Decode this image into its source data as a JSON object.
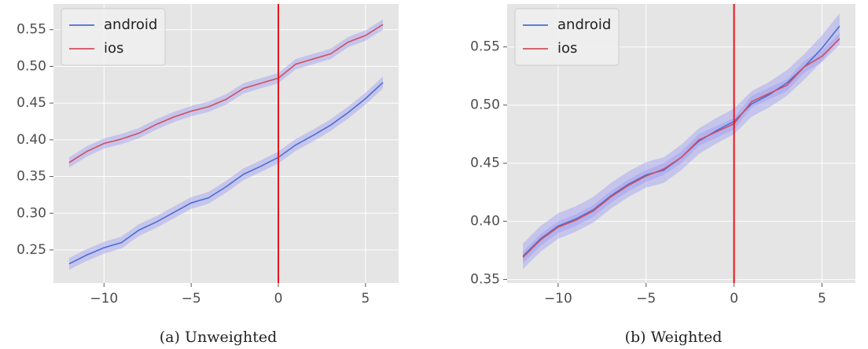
{
  "chart_data": [
    {
      "type": "line",
      "caption": "(a) Unweighted",
      "x": [
        -12,
        -11,
        -10,
        -9,
        -8,
        -7,
        -6,
        -5,
        -4,
        -3,
        -2,
        -1,
        0,
        1,
        2,
        3,
        4,
        5,
        6
      ],
      "series": [
        {
          "name": "android",
          "color": "#4a6fd4",
          "ci": 0.008,
          "values": [
            0.231,
            0.243,
            0.253,
            0.26,
            0.277,
            0.288,
            0.301,
            0.314,
            0.321,
            0.336,
            0.353,
            0.364,
            0.376,
            0.393,
            0.406,
            0.42,
            0.437,
            0.456,
            0.478
          ]
        },
        {
          "name": "ios",
          "color": "#d24f5a",
          "ci": 0.007,
          "values": [
            0.369,
            0.384,
            0.395,
            0.401,
            0.409,
            0.421,
            0.431,
            0.439,
            0.445,
            0.455,
            0.47,
            0.477,
            0.484,
            0.503,
            0.51,
            0.517,
            0.533,
            0.542,
            0.557
          ]
        }
      ],
      "band_color": "#9d9cf2",
      "vline": 0,
      "vline_color": "#e8141c",
      "xlim": [
        -12.9,
        6.9
      ],
      "ylim": [
        0.205,
        0.585
      ],
      "xticks": [
        {
          "value": -10,
          "label": "−10"
        },
        {
          "value": -5,
          "label": "−5"
        },
        0,
        5
      ],
      "yticks": [
        0.25,
        {
          "value": 0.3,
          "label": "0.30"
        },
        0.35,
        {
          "value": 0.4,
          "label": "0.40"
        },
        0.45,
        {
          "value": 0.5,
          "label": "0.50"
        },
        0.55
      ],
      "grid": true,
      "legend": "upper left"
    },
    {
      "type": "line",
      "caption": "(b) Weighted",
      "x": [
        -12,
        -11,
        -10,
        -9,
        -8,
        -7,
        -6,
        -5,
        -4,
        -3,
        -2,
        -1,
        0,
        1,
        2,
        3,
        4,
        5,
        6
      ],
      "series": [
        {
          "name": "android",
          "color": "#4a6fd4",
          "ci": 0.011,
          "values": [
            0.37,
            0.385,
            0.396,
            0.402,
            0.41,
            0.422,
            0.432,
            0.44,
            0.444,
            0.455,
            0.469,
            0.478,
            0.486,
            0.501,
            0.509,
            0.519,
            0.533,
            0.549,
            0.568
          ]
        },
        {
          "name": "ios",
          "color": "#d24f5a",
          "ci": 0.005,
          "values": [
            0.369,
            0.384,
            0.395,
            0.401,
            0.409,
            0.421,
            0.431,
            0.439,
            0.445,
            0.455,
            0.47,
            0.477,
            0.484,
            0.503,
            0.51,
            0.517,
            0.533,
            0.542,
            0.557
          ]
        }
      ],
      "band_color": "#9d9cf2",
      "vline": 0,
      "vline_color": "#e8141c",
      "xlim": [
        -12.9,
        6.9
      ],
      "ylim": [
        0.347,
        0.587
      ],
      "xticks": [
        {
          "value": -10,
          "label": "−10"
        },
        {
          "value": -5,
          "label": "−5"
        },
        0,
        5
      ],
      "yticks": [
        0.35,
        {
          "value": 0.4,
          "label": "0.40"
        },
        0.45,
        {
          "value": 0.5,
          "label": "0.50"
        },
        0.55
      ],
      "grid": true,
      "legend": "upper left"
    }
  ]
}
